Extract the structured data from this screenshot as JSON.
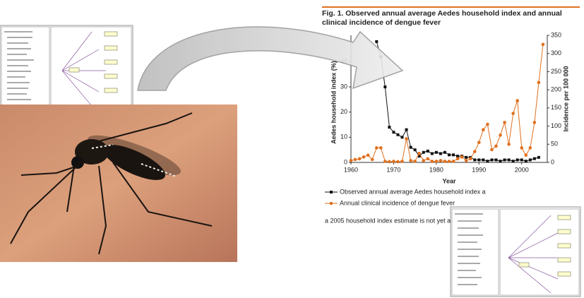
{
  "chart_data": {
    "type": "line",
    "title": "Fig. 1. Observed annual average Aedes household index and annual clinical incidence of dengue fever",
    "x_label": "Year",
    "y_label": "Aedes household index (%)",
    "y2_label": "Incidence per 100 000",
    "x": [
      1960,
      1961,
      1962,
      1963,
      1964,
      1965,
      1966,
      1967,
      1968,
      1969,
      1970,
      1971,
      1972,
      1973,
      1974,
      1975,
      1976,
      1977,
      1978,
      1979,
      1980,
      1981,
      1982,
      1983,
      1984,
      1985,
      1986,
      1987,
      1988,
      1989,
      1990,
      1991,
      1992,
      1993,
      1994,
      1995,
      1996,
      1997,
      1998,
      1999,
      2000,
      2001,
      2002,
      2003,
      2004,
      2005
    ],
    "xlim": [
      1960,
      2006
    ],
    "xticks": [
      1960,
      1970,
      1980,
      1990,
      2000
    ],
    "ylim": [
      0,
      50.5
    ],
    "yticks": [
      0,
      10,
      20,
      30,
      40
    ],
    "y2lim": [
      0,
      350
    ],
    "y2ticks": [
      0,
      50,
      100,
      150,
      200,
      250,
      300,
      350
    ],
    "series": [
      {
        "name": "Observed annual average Aedes household index a",
        "color": "#111111",
        "marker": "square",
        "values": [
          null,
          null,
          null,
          null,
          null,
          null,
          48,
          42,
          30,
          14,
          12,
          11,
          10,
          13,
          6,
          5,
          2.5,
          4,
          4.5,
          3.5,
          4,
          3.5,
          4,
          3,
          3,
          2.5,
          2.5,
          2,
          2,
          1,
          1,
          1,
          0.5,
          1,
          1,
          0.5,
          1,
          1,
          0.5,
          1,
          1,
          0.5,
          1,
          1.5,
          2,
          null
        ]
      },
      {
        "name": "Annual clinical incidence of dengue fever",
        "color": "#e0701e",
        "marker": "circle",
        "axis": "y2",
        "values": [
          5,
          8,
          10,
          15,
          20,
          8,
          40,
          40,
          3,
          2,
          3,
          2,
          3,
          65,
          5,
          3,
          25,
          5,
          10,
          3,
          3,
          5,
          3,
          3,
          3,
          10,
          15,
          5,
          10,
          30,
          55,
          90,
          105,
          35,
          45,
          75,
          110,
          50,
          135,
          170,
          40,
          20,
          40,
          110,
          220,
          325
        ]
      }
    ],
    "footnote": "a 2005 household index estimate is not yet available."
  }
}
